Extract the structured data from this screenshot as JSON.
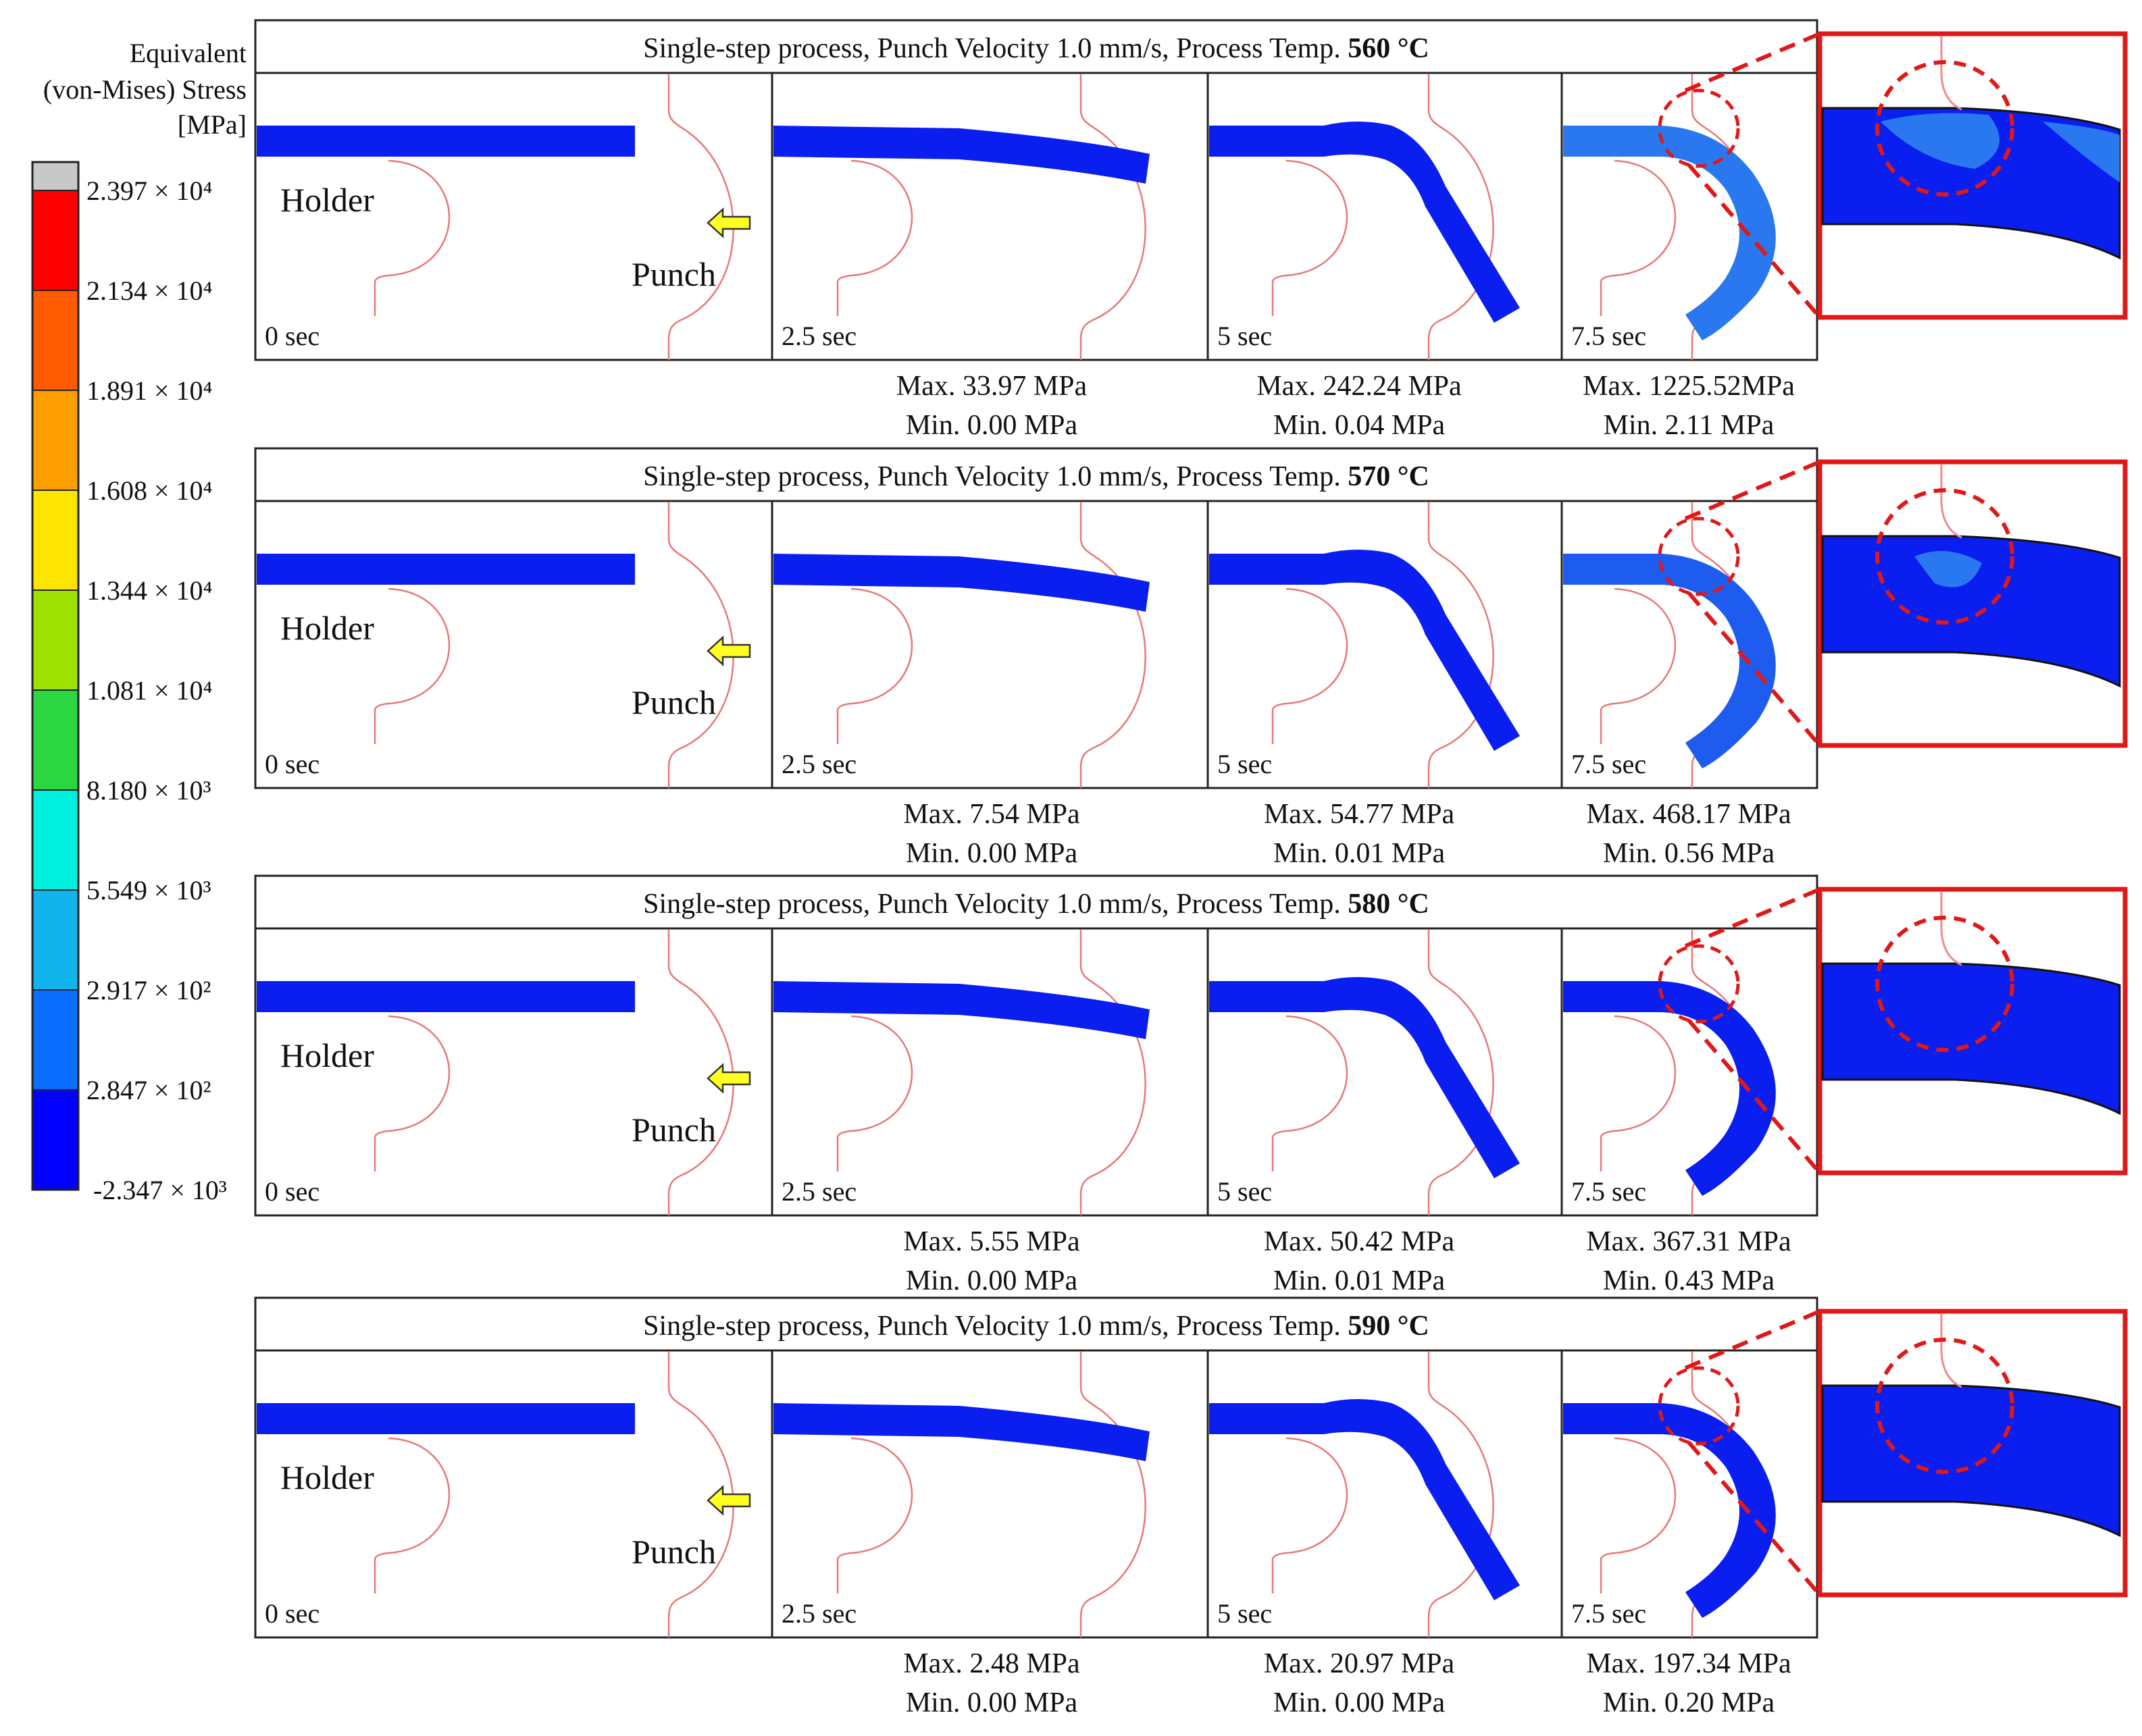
{
  "legend": {
    "title_lines": [
      "Equivalent",
      "(von-Mises) Stress",
      "[MPa]"
    ],
    "tick_labels": [
      "2.397 × 10⁴",
      "2.134 × 10⁴",
      "1.891 × 10⁴",
      "1.608 × 10⁴",
      "1.344 × 10⁴",
      "1.081 × 10⁴",
      "8.180 × 10³",
      "5.549 × 10³",
      "2.917 × 10²",
      "2.847 × 10²",
      "-2.347 × 10³"
    ],
    "colors": [
      "#c8c8c8",
      "#ff0000",
      "#ff5a00",
      "#ffa000",
      "#ffe600",
      "#9ee000",
      "#2cd640",
      "#00f0e0",
      "#12b4ee",
      "#0a6eff",
      "#0000ff"
    ]
  },
  "labels": {
    "holder": "Holder",
    "punch": "Punch",
    "times": [
      "0 sec",
      "2.5 sec",
      "5 sec",
      "7.5 sec"
    ]
  },
  "rows": [
    {
      "title_prefix": "Single-step process, Punch Velocity 1.0 mm/s, Process Temp.",
      "temp": "560 °C",
      "stats": [
        {
          "max": "Max.  33.97 MPa",
          "min": "Min. 0.00 MPa"
        },
        {
          "max": "Max.  242.24 MPa",
          "min": "Min. 0.04 MPa"
        },
        {
          "max": "Max. 1225.52MPa",
          "min": "Min. 2.11 MPa"
        }
      ]
    },
    {
      "title_prefix": "Single-step process, Punch Velocity 1.0 mm/s, Process Temp.",
      "temp": "570 °C",
      "stats": [
        {
          "max": "Max.  7.54 MPa",
          "min": "Min. 0.00 MPa"
        },
        {
          "max": "Max.  54.77 MPa",
          "min": "Min. 0.01 MPa"
        },
        {
          "max": "Max. 468.17 MPa",
          "min": "Min. 0.56 MPa"
        }
      ]
    },
    {
      "title_prefix": "Single-step process, Punch Velocity 1.0 mm/s, Process Temp.",
      "temp": "580 °C",
      "stats": [
        {
          "max": "Max.  5.55 MPa",
          "min": "Min. 0.00 MPa"
        },
        {
          "max": "Max.  50.42 MPa",
          "min": "Min. 0.01 MPa"
        },
        {
          "max": "Max. 367.31 MPa",
          "min": "Min. 0.43 MPa"
        }
      ]
    },
    {
      "title_prefix": "Single-step process, Punch Velocity 1.0 mm/s, Process Temp.",
      "temp": "590 °C",
      "stats": [
        {
          "max": "Max.  2.48 MPa",
          "min": "Min. 0.00 MPa"
        },
        {
          "max": "Max.  20.97 MPa",
          "min": "Min. 0.00 MPa"
        },
        {
          "max": "Max. 197.34 MPa",
          "min": "Min. 0.20 MPa"
        }
      ]
    }
  ]
}
